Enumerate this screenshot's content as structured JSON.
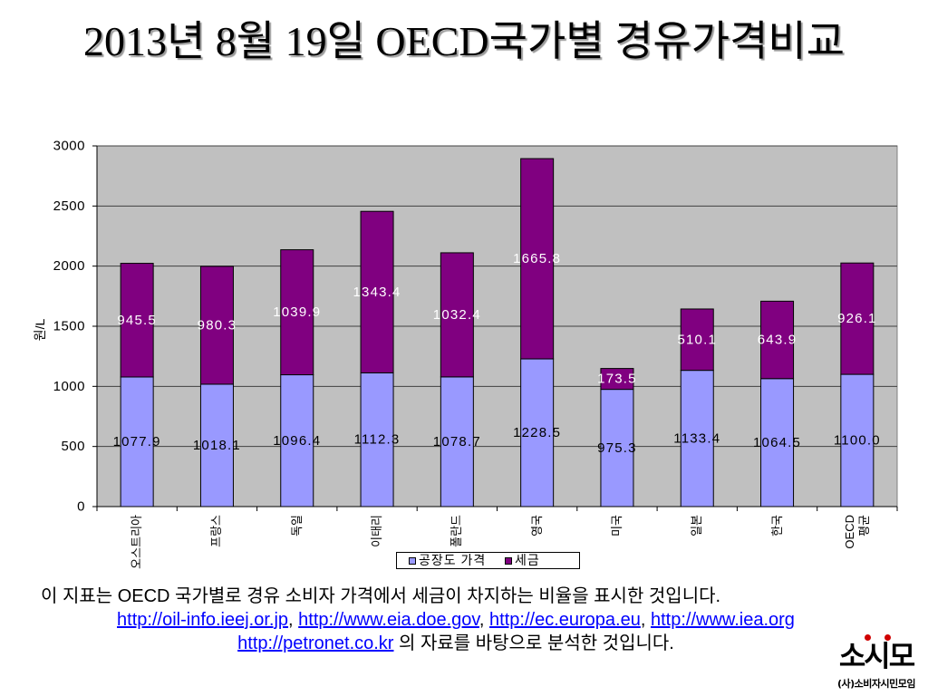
{
  "slide": {
    "title": "2013년 8월 19일 OECD국가별 경유가격비교"
  },
  "chart_data": {
    "type": "bar",
    "stacked": true,
    "categories": [
      "오스트리아",
      "프랑스",
      "독일",
      "이태리",
      "폴란드",
      "영국",
      "미국",
      "일본",
      "한국",
      "OECD 평균"
    ],
    "series": [
      {
        "name": "공장도 가격",
        "color": "#9999FF",
        "label_color": "#000000",
        "values": [
          1077.9,
          1018.1,
          1096.4,
          1112.3,
          1078.7,
          1228.5,
          975.3,
          1133.4,
          1064.5,
          1100.0
        ]
      },
      {
        "name": "세금",
        "color": "#800080",
        "label_color": "#FFFFFF",
        "values": [
          945.5,
          980.3,
          1039.9,
          1343.4,
          1032.4,
          1665.8,
          173.5,
          510.1,
          643.9,
          926.1
        ]
      }
    ],
    "ylabel": "원/L",
    "ylim": [
      0,
      3000
    ],
    "yticks": [
      0,
      500,
      1000,
      1500,
      2000,
      2500,
      3000
    ],
    "grid": true,
    "legend": "bottom",
    "data_labels": true,
    "plot_background": "#C0C0C0"
  },
  "caption": {
    "line1": "이 지표는 OECD 국가별로 경유 소비자 가격에서 세금이 차지하는 비율을 표시한 것입니다.",
    "sources": [
      "http://oil-info.ieej.or.jp",
      "http://www.eia.doe.gov",
      "http://ec.europa.eu",
      "http://www.iea.org"
    ],
    "separator": ",",
    "line3_link": "http://petronet.co.kr",
    "line3_text": "의 자료를 바탕으로 분석한 것입니다.",
    "link_color": "#0000FF"
  },
  "logo": {
    "mark": "소시모",
    "name": "(사)소비자시민모임"
  }
}
